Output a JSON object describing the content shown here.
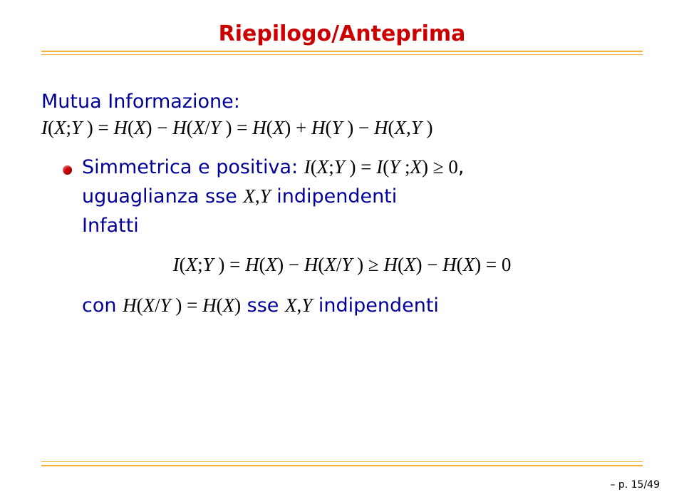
{
  "colors": {
    "title": "#cc0000",
    "rule_top": "#f4b431",
    "body_blue": "#000099",
    "bullet_fill": "#cc0000",
    "math_black": "#000000",
    "rule_bottom_thin": "#f4b431",
    "rule_bottom_thick": "#f4b431",
    "pagenum": "#000000"
  },
  "fontsize": {
    "title": 30,
    "body": 27,
    "pagenum": 14
  },
  "title": "Riepilogo/Anteprima",
  "section_head": "Mutua Informazione:",
  "eq1": "I(X; Y ) = H(X) − H(X/Y ) = H(X) + H(Y ) − H(X, Y )",
  "bullet": {
    "pre": "Simmetrica e positiva: ",
    "math": "I(X; Y ) = I(Y ; X) ≥ 0",
    "post": ","
  },
  "cont1_pre": "uguaglianza sse ",
  "cont1_math": "X, Y",
  "cont1_post": " indipendenti",
  "infatti": "Infatti",
  "eq2": "I(X; Y ) = H(X) − H(X/Y ) ≥ H(X) − H(X) = 0",
  "cont2_pre": "con ",
  "cont2_math1": "H(X/Y ) = H(X)",
  "cont2_mid": " sse ",
  "cont2_math2": "X, Y",
  "cont2_post": " indipendenti",
  "pagenum": "– p. 15/49"
}
